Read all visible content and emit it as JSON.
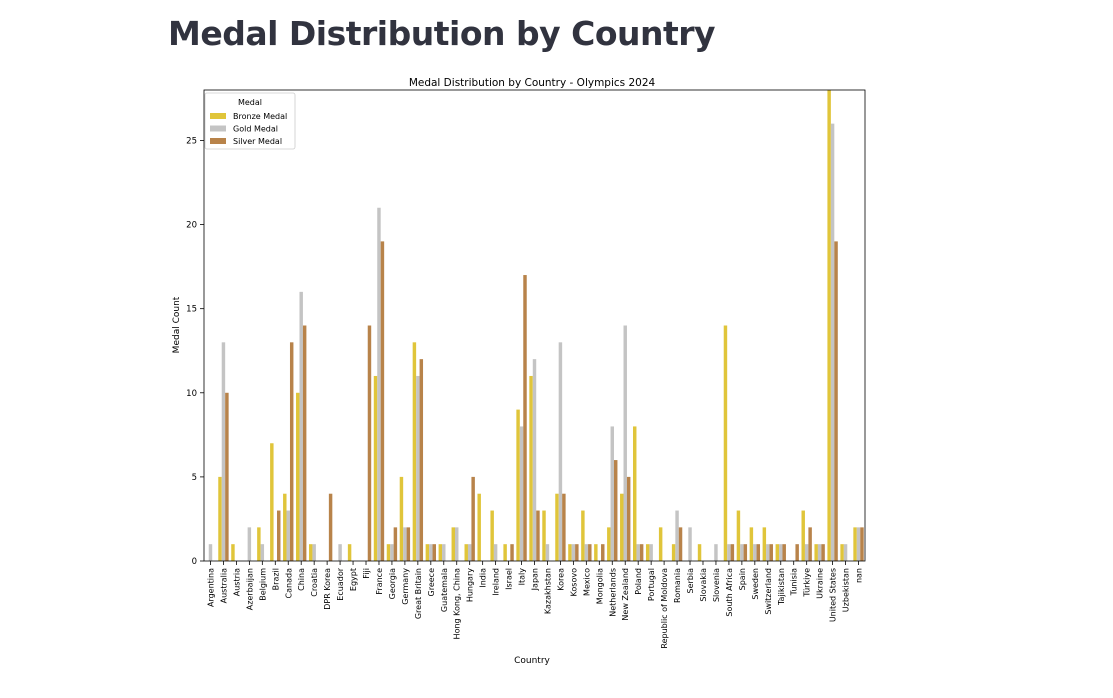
{
  "page": {
    "title": "Medal Distribution by Country"
  },
  "chart_data": {
    "type": "bar",
    "title": "Medal Distribution by Country - Olympics 2024",
    "xlabel": "Country",
    "ylabel": "Medal Count",
    "ylim": [
      0,
      28
    ],
    "yticks": [
      0,
      5,
      10,
      15,
      20,
      25
    ],
    "grid": false,
    "legend": {
      "title": "Medal",
      "placement": "top-left"
    },
    "categories": [
      "Argentina",
      "Australia",
      "Austria",
      "Azerbaijan",
      "Belgium",
      "Brazil",
      "Canada",
      "China",
      "Croatia",
      "DPR Korea",
      "Ecuador",
      "Egypt",
      "Fiji",
      "France",
      "Georgia",
      "Germany",
      "Great Britain",
      "Greece",
      "Guatemala",
      "Hong Kong, China",
      "Hungary",
      "India",
      "Ireland",
      "Israel",
      "Italy",
      "Japan",
      "Kazakhstan",
      "Korea",
      "Kosovo",
      "Mexico",
      "Mongolia",
      "Netherlands",
      "New Zealand",
      "Poland",
      "Portugal",
      "Republic of Moldova",
      "Romania",
      "Serbia",
      "Slovakia",
      "Slovenia",
      "South Africa",
      "Spain",
      "Sweden",
      "Switzerland",
      "Tajikistan",
      "Tunisia",
      "Türkiye",
      "Ukraine",
      "United States",
      "Uzbekistan",
      "nan"
    ],
    "series": [
      {
        "name": "Bronze Medal",
        "color": "#e0c53a",
        "values": [
          0,
          5,
          1,
          0,
          2,
          7,
          4,
          10,
          1,
          0,
          0,
          1,
          0,
          11,
          1,
          5,
          13,
          1,
          1,
          2,
          1,
          4,
          3,
          1,
          9,
          11,
          3,
          4,
          1,
          3,
          1,
          2,
          4,
          8,
          1,
          2,
          1,
          0,
          1,
          0,
          14,
          3,
          2,
          2,
          1,
          0,
          3,
          1,
          28,
          1,
          2
        ]
      },
      {
        "name": "Gold Medal",
        "color": "#c4c4c4",
        "values": [
          1,
          13,
          0,
          2,
          1,
          0,
          3,
          16,
          1,
          0,
          1,
          0,
          0,
          21,
          1,
          2,
          11,
          1,
          1,
          2,
          1,
          0,
          1,
          0,
          8,
          12,
          1,
          13,
          1,
          1,
          0,
          8,
          14,
          1,
          1,
          0,
          3,
          2,
          0,
          1,
          1,
          1,
          1,
          1,
          1,
          0,
          1,
          1,
          26,
          1,
          2
        ]
      },
      {
        "name": "Silver Medal",
        "color": "#b8834a",
        "values": [
          0,
          10,
          0,
          0,
          0,
          3,
          13,
          14,
          0,
          4,
          0,
          0,
          14,
          19,
          2,
          2,
          12,
          1,
          0,
          0,
          5,
          0,
          0,
          1,
          17,
          3,
          0,
          4,
          1,
          1,
          1,
          6,
          5,
          1,
          0,
          0,
          2,
          0,
          0,
          0,
          1,
          1,
          1,
          1,
          1,
          1,
          2,
          1,
          19,
          0,
          2
        ]
      }
    ]
  }
}
